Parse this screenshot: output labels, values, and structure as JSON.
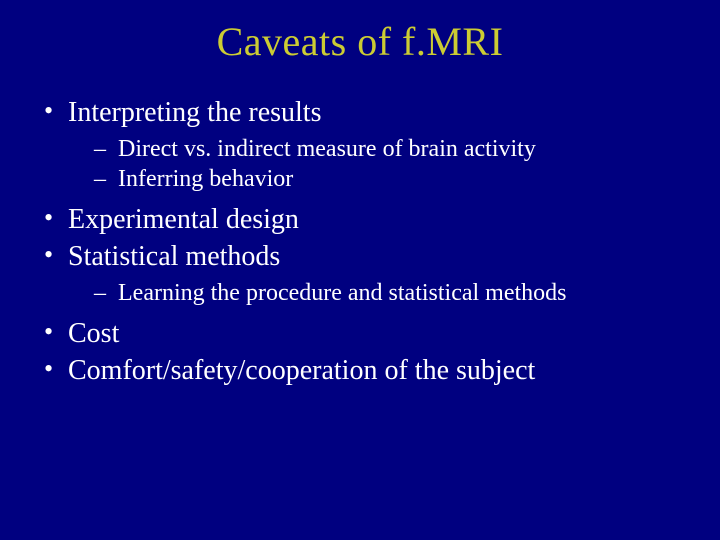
{
  "background_color": "#000080",
  "title_color": "#cccc33",
  "text_color": "#ffffff",
  "font_family": "Garamond, Georgia, 'Times New Roman', serif",
  "title_fontsize": 40,
  "level1_fontsize": 28,
  "level2_fontsize": 24,
  "title": "Caveats of f.MRI",
  "bullets": [
    {
      "text": "Interpreting the results",
      "children": [
        "Direct vs. indirect measure of brain activity",
        "Inferring behavior"
      ]
    },
    {
      "text": "Experimental design",
      "children": []
    },
    {
      "text": "Statistical methods",
      "children": [
        "Learning the procedure and statistical methods"
      ]
    },
    {
      "text": "Cost",
      "children": []
    },
    {
      "text": "Comfort/safety/cooperation of the subject",
      "children": []
    }
  ]
}
